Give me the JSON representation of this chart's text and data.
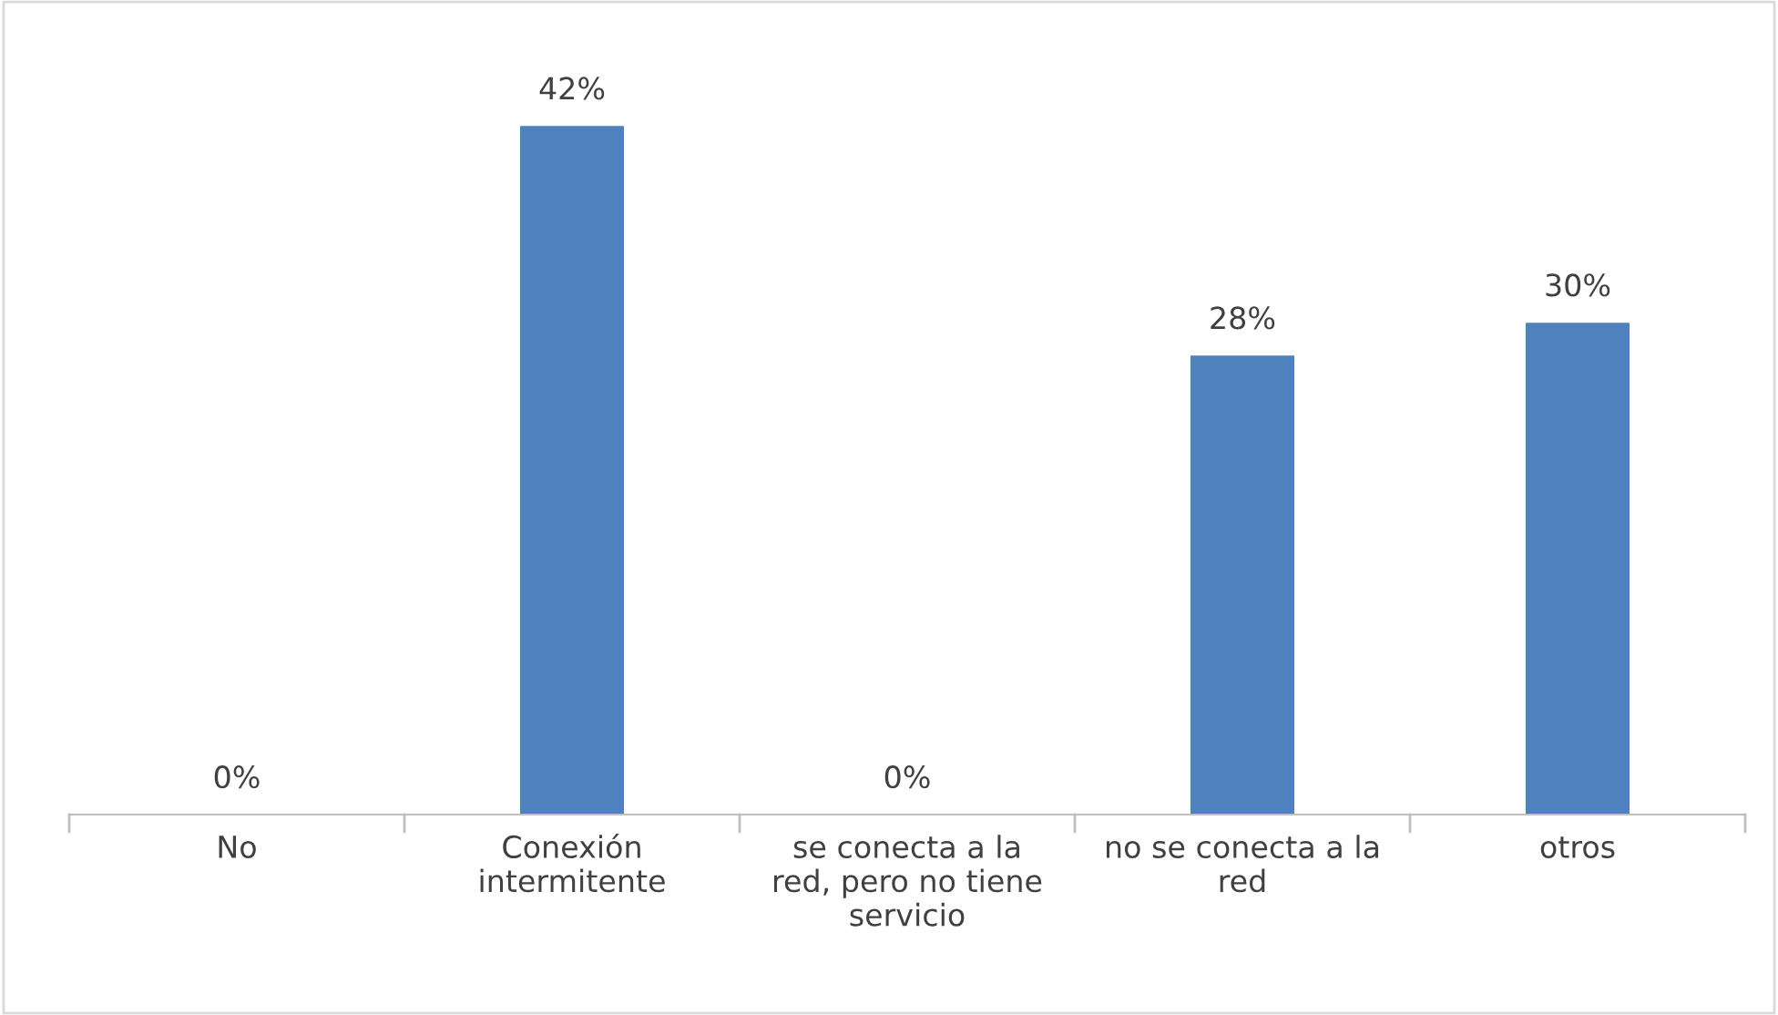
{
  "chart_data": {
    "type": "bar",
    "categories": [
      "No",
      "Conexión intermitente",
      "se conecta a la red, pero no tiene servicio",
      "no se conecta a la red",
      "otros"
    ],
    "values": [
      0,
      42,
      0,
      28,
      30
    ],
    "value_labels": [
      "0%",
      "42%",
      "0%",
      "28%",
      "30%"
    ],
    "color": "#4f81bd",
    "grid": false,
    "legend": false
  }
}
